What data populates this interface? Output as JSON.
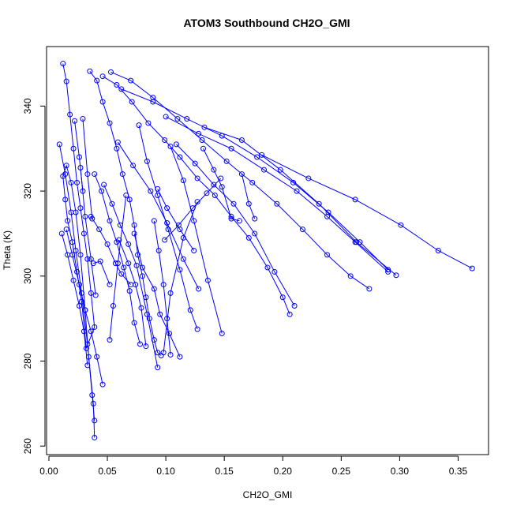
{
  "chart_data": {
    "type": "scatter",
    "title": "ATOM3 Southbound CH2O_GMI",
    "xlabel": "CH2O_GMI",
    "ylabel": "Theta (K)",
    "xlim": [
      -0.002,
      0.376
    ],
    "ylim": [
      258,
      354
    ],
    "xticks": [
      0.0,
      0.05,
      0.1,
      0.15,
      0.2,
      0.25,
      0.3,
      0.35
    ],
    "xtick_labels": [
      "0.00",
      "0.05",
      "0.10",
      "0.15",
      "0.20",
      "0.25",
      "0.30",
      "0.35"
    ],
    "yticks": [
      260,
      280,
      300,
      320,
      340
    ],
    "ytick_labels": [
      "260",
      "280",
      "300",
      "320",
      "340"
    ],
    "grid": false,
    "color": "#0000ff",
    "series": [
      {
        "x": [
          0.012,
          0.015,
          0.018,
          0.021,
          0.024,
          0.027,
          0.03,
          0.033,
          0.036,
          0.039,
          0.032,
          0.028,
          0.024,
          0.02,
          0.016,
          0.014,
          0.012,
          0.015,
          0.019,
          0.023,
          0.027,
          0.031,
          0.034,
          0.037,
          0.039
        ],
        "y": [
          350.0,
          345.8,
          338.0,
          330.0,
          322.0,
          316.0,
          310.0,
          304.0,
          296.0,
          288.0,
          283.0,
          294.0,
          301.0,
          308.0,
          313.0,
          318.0,
          323.5,
          326.0,
          322.0,
          315.0,
          305.0,
          292.0,
          281.0,
          272.0,
          266.0
        ]
      },
      {
        "x": [
          0.035,
          0.041,
          0.046,
          0.052,
          0.058,
          0.063,
          0.069,
          0.073,
          0.076,
          0.08,
          0.083,
          0.086,
          0.09,
          0.093,
          0.096
        ],
        "y": [
          348.2,
          346.0,
          341.0,
          336.0,
          330.0,
          324.0,
          318.0,
          312.0,
          305.0,
          300.0,
          295.0,
          290.0,
          285.0,
          282.0,
          281.3
        ]
      },
      {
        "x": [
          0.046,
          0.058,
          0.071,
          0.085,
          0.099,
          0.112,
          0.127,
          0.142,
          0.156,
          0.171,
          0.187,
          0.2,
          0.206
        ],
        "y": [
          347.0,
          345.0,
          341.0,
          336.0,
          332.0,
          328.0,
          323.0,
          319.0,
          314.0,
          309.0,
          302.0,
          295.0,
          291.0
        ]
      },
      {
        "x": [
          0.053,
          0.07,
          0.089,
          0.11,
          0.131,
          0.152,
          0.174,
          0.195,
          0.217,
          0.238,
          0.258,
          0.274
        ],
        "y": [
          348.0,
          346.0,
          342.0,
          337.0,
          332.0,
          327.0,
          322.0,
          317.0,
          311.0,
          305.0,
          300.0,
          297.0
        ]
      },
      {
        "x": [
          0.062,
          0.089,
          0.118,
          0.148,
          0.178,
          0.209,
          0.239,
          0.266,
          0.29
        ],
        "y": [
          344.0,
          341.0,
          337.0,
          333.0,
          328.0,
          322.0,
          315.0,
          308.0,
          301.5
        ]
      },
      {
        "x": [
          0.1,
          0.128,
          0.156,
          0.184,
          0.212,
          0.238,
          0.262,
          0.29
        ],
        "y": [
          337.5,
          333.5,
          330.0,
          325.0,
          320.0,
          314.0,
          308.0,
          301.0
        ]
      },
      {
        "x": [
          0.133,
          0.165,
          0.198,
          0.231,
          0.263,
          0.297
        ],
        "y": [
          335.0,
          332.0,
          325.0,
          317.0,
          308.0,
          300.2
        ]
      },
      {
        "x": [
          0.182,
          0.222,
          0.262,
          0.301,
          0.333,
          0.362
        ],
        "y": [
          328.5,
          323.0,
          318.0,
          312.0,
          306.0,
          301.8
        ]
      },
      {
        "x": [
          0.077,
          0.084,
          0.093,
          0.102,
          0.112,
          0.121,
          0.127
        ],
        "y": [
          335.5,
          327.0,
          319.0,
          311.0,
          301.5,
          292.0,
          287.5
        ]
      },
      {
        "x": [
          0.059,
          0.072,
          0.087,
          0.101,
          0.115,
          0.128
        ],
        "y": [
          331.5,
          326.0,
          320.0,
          312.5,
          304.0,
          297.0
        ]
      },
      {
        "x": [
          0.104,
          0.115,
          0.124,
          0.136,
          0.148
        ],
        "y": [
          330.5,
          322.5,
          313.0,
          299.0,
          286.5
        ]
      },
      {
        "x": [
          0.109,
          0.125,
          0.141,
          0.158,
          0.176,
          0.193,
          0.21
        ],
        "y": [
          331.0,
          326.5,
          321.5,
          317.0,
          310.0,
          301.0,
          293.0
        ]
      },
      {
        "x": [
          0.015,
          0.02,
          0.026,
          0.031,
          0.036,
          0.041,
          0.046
        ],
        "y": [
          311.0,
          305.0,
          298.0,
          292.0,
          287.0,
          281.0,
          274.5
        ]
      },
      {
        "x": [
          0.009,
          0.014,
          0.019,
          0.023,
          0.028,
          0.033,
          0.038,
          0.039
        ],
        "y": [
          331.0,
          324.0,
          315.0,
          306.0,
          296.0,
          284.0,
          270.0,
          262.0
        ]
      },
      {
        "x": [
          0.011,
          0.016,
          0.021,
          0.026,
          0.03,
          0.033
        ],
        "y": [
          310.0,
          305.0,
          299.0,
          293.0,
          287.0,
          279.0
        ]
      },
      {
        "x": [
          0.039,
          0.045,
          0.052,
          0.058,
          0.064,
          0.069,
          0.073,
          0.078
        ],
        "y": [
          324.0,
          320.0,
          313.0,
          308.0,
          302.0,
          296.5,
          289.0,
          284.0
        ]
      },
      {
        "x": [
          0.047,
          0.054,
          0.061,
          0.068,
          0.075,
          0.084,
          0.093
        ],
        "y": [
          321.5,
          317.0,
          312.0,
          307.5,
          302.5,
          291.0,
          278.5
        ]
      },
      {
        "x": [
          0.036,
          0.043,
          0.05,
          0.057,
          0.062,
          0.07
        ],
        "y": [
          314.0,
          311.0,
          307.5,
          303.0,
          300.5,
          298.0
        ]
      },
      {
        "x": [
          0.073,
          0.08,
          0.09,
          0.095,
          0.103,
          0.112
        ],
        "y": [
          310.0,
          302.0,
          297.0,
          291.0,
          286.5,
          281.0
        ]
      },
      {
        "x": [
          0.09,
          0.094,
          0.098,
          0.101,
          0.104
        ],
        "y": [
          313.0,
          306.0,
          298.0,
          290.0,
          281.5
        ]
      },
      {
        "x": [
          0.06,
          0.068,
          0.074,
          0.079,
          0.083
        ],
        "y": [
          308.5,
          303.0,
          298.0,
          292.5,
          283.5
        ]
      },
      {
        "x": [
          0.066,
          0.059,
          0.055,
          0.052
        ],
        "y": [
          319.0,
          303.0,
          293.0,
          285.0
        ]
      },
      {
        "x": [
          0.127,
          0.115,
          0.104,
          0.098
        ],
        "y": [
          317.5,
          309.0,
          296.0,
          282.0
        ]
      },
      {
        "x": [
          0.093,
          0.101,
          0.112,
          0.124
        ],
        "y": [
          320.5,
          316.0,
          311.0,
          306.0
        ]
      },
      {
        "x": [
          0.099,
          0.111,
          0.123,
          0.135,
          0.147
        ],
        "y": [
          308.5,
          312.0,
          316.0,
          319.5,
          323.0
        ]
      },
      {
        "x": [
          0.027,
          0.031,
          0.036,
          0.04
        ],
        "y": [
          325.5,
          314.0,
          304.0,
          295.5
        ]
      },
      {
        "x": [
          0.022,
          0.026,
          0.029
        ],
        "y": [
          336.5,
          328.0,
          320.0
        ]
      },
      {
        "x": [
          0.029,
          0.033,
          0.037
        ],
        "y": [
          337.0,
          324.0,
          313.5
        ]
      },
      {
        "x": [
          0.038,
          0.044,
          0.052
        ],
        "y": [
          303.0,
          303.5,
          298.0
        ]
      },
      {
        "x": [
          0.132,
          0.141,
          0.148,
          0.156,
          0.163
        ],
        "y": [
          330.0,
          325.0,
          321.0,
          313.5,
          313.0
        ]
      },
      {
        "x": [
          0.165,
          0.171,
          0.176
        ],
        "y": [
          324.0,
          317.0,
          313.5
        ]
      }
    ]
  }
}
